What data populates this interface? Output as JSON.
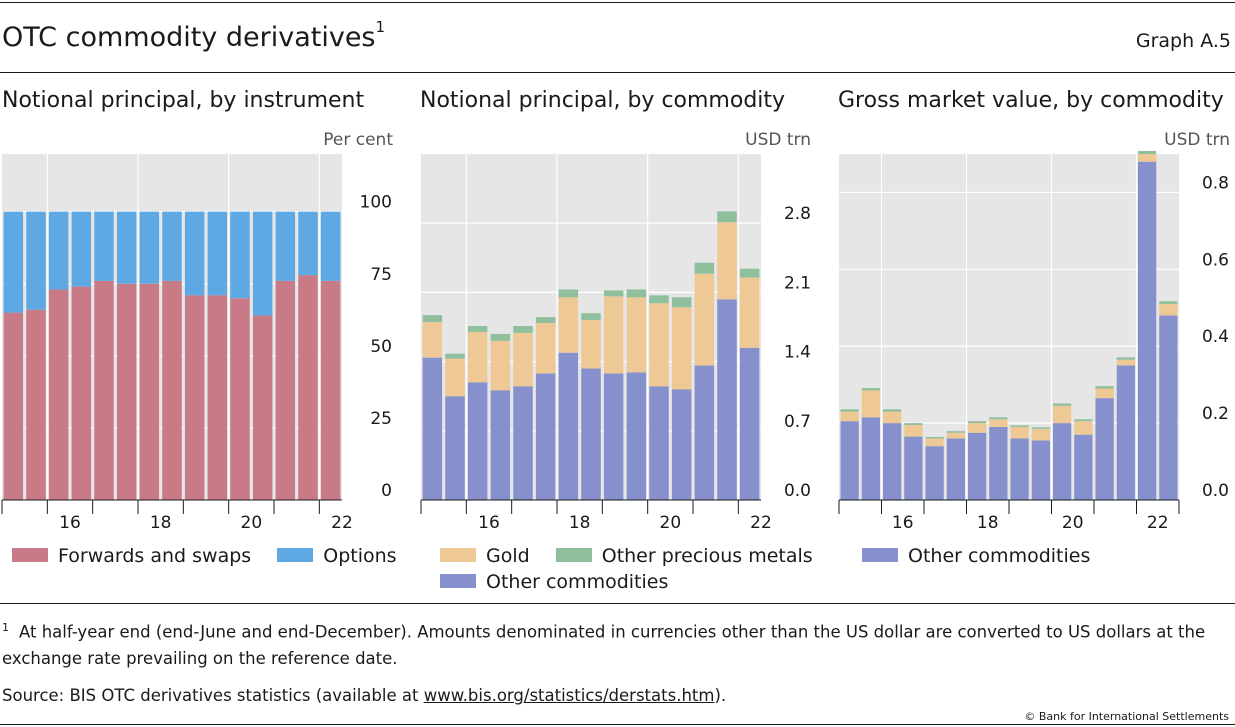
{
  "header": {
    "title": "OTC commodity derivatives",
    "title_sup": "1",
    "graph_number": "Graph A.5"
  },
  "colors": {
    "forwards": "#c97a87",
    "options": "#5ea9e3",
    "gold": "#efc995",
    "other_precious": "#8fbf9d",
    "other_commodities": "#8590cc",
    "plot_bg": "#e6e6e6"
  },
  "chart_data": [
    {
      "type": "bar",
      "stacked": true,
      "title": "Notional principal, by instrument",
      "unit": "Per cent",
      "ylim": [
        0,
        120
      ],
      "yticks": [
        0,
        25,
        50,
        75,
        100
      ],
      "ytick_labels": [
        "0",
        "25",
        "50",
        "75",
        "100"
      ],
      "xtick_labels": [
        "16",
        "18",
        "20",
        "22"
      ],
      "xtick_positions": [
        1.5,
        5.5,
        9.5,
        13.5
      ],
      "grid": true,
      "series": [
        {
          "name": "Forwards and swaps",
          "values": [
            65,
            66,
            73,
            74,
            76,
            75,
            75,
            76,
            71,
            71,
            70,
            64,
            76,
            78,
            76
          ]
        },
        {
          "name": "Options",
          "values": [
            35,
            34,
            27,
            26,
            24,
            25,
            25,
            24,
            29,
            29,
            30,
            36,
            24,
            22,
            24
          ]
        }
      ]
    },
    {
      "type": "bar",
      "stacked": true,
      "title": "Notional principal, by commodity",
      "unit": "USD trn",
      "ylim": [
        0,
        3.5
      ],
      "yticks": [
        0,
        0.7,
        1.4,
        2.1,
        2.8
      ],
      "ytick_labels": [
        "0.0",
        "0.7",
        "1.4",
        "2.1",
        "2.8"
      ],
      "xtick_labels": [
        "16",
        "18",
        "20",
        "22"
      ],
      "xtick_positions": [
        1.5,
        5.5,
        9.5,
        13.5
      ],
      "grid": true,
      "series": [
        {
          "name": "Other commodities",
          "values": [
            1.44,
            1.05,
            1.19,
            1.11,
            1.15,
            1.28,
            1.49,
            1.33,
            1.28,
            1.29,
            1.15,
            1.12,
            1.36,
            2.03,
            1.54
          ]
        },
        {
          "name": "Gold",
          "values": [
            0.36,
            0.38,
            0.51,
            0.5,
            0.54,
            0.51,
            0.56,
            0.49,
            0.78,
            0.76,
            0.84,
            0.83,
            0.93,
            0.78,
            0.71
          ]
        },
        {
          "name": "Other precious metals",
          "values": [
            0.07,
            0.05,
            0.06,
            0.07,
            0.07,
            0.06,
            0.08,
            0.07,
            0.06,
            0.08,
            0.08,
            0.1,
            0.11,
            0.11,
            0.09
          ]
        }
      ]
    },
    {
      "type": "bar",
      "stacked": true,
      "title": "Gross market value, by commodity",
      "unit": "USD trn",
      "ylim": [
        0,
        0.9
      ],
      "yticks": [
        0,
        0.2,
        0.4,
        0.6,
        0.8
      ],
      "ytick_labels": [
        "0.0",
        "0.2",
        "0.4",
        "0.6",
        "0.8"
      ],
      "xtick_labels": [
        "16",
        "18",
        "20",
        "22"
      ],
      "xtick_positions": [
        1.5,
        5.5,
        9.5,
        13.5
      ],
      "grid": true,
      "series": [
        {
          "name": "Other commodities",
          "values": [
            0.205,
            0.215,
            0.2,
            0.165,
            0.14,
            0.16,
            0.175,
            0.19,
            0.16,
            0.155,
            0.2,
            0.17,
            0.265,
            0.35,
            0.88,
            0.48
          ]
        },
        {
          "name": "Gold",
          "values": [
            0.025,
            0.07,
            0.03,
            0.03,
            0.02,
            0.015,
            0.025,
            0.02,
            0.03,
            0.03,
            0.045,
            0.035,
            0.025,
            0.015,
            0.02,
            0.03
          ]
        },
        {
          "name": "Other precious metals",
          "values": [
            0.006,
            0.006,
            0.006,
            0.005,
            0.004,
            0.004,
            0.005,
            0.005,
            0.004,
            0.004,
            0.006,
            0.005,
            0.006,
            0.006,
            0.008,
            0.007
          ]
        }
      ],
      "bar_count": 16
    }
  ],
  "legends": {
    "left": [
      {
        "label": "Forwards and swaps",
        "color": "#c97a87"
      },
      {
        "label": "Options",
        "color": "#5ea9e3"
      }
    ],
    "middle_row1": [
      {
        "label": "Gold",
        "color": "#efc995"
      },
      {
        "label": "Other precious metals",
        "color": "#8fbf9d"
      }
    ],
    "middle_row2": [
      {
        "label": "Other commodities",
        "color": "#8590cc"
      }
    ],
    "right": [
      {
        "label": "Other commodities",
        "color": "#8590cc"
      }
    ]
  },
  "footnote": {
    "marker": "1",
    "text": "At half-year end (end-June and end-December). Amounts denominated in currencies other than the US dollar are converted to US dollars at the exchange rate prevailing on the reference date."
  },
  "source": {
    "prefix": "Source: BIS OTC derivatives statistics (available at ",
    "link": "www.bis.org/statistics/derstats.htm",
    "suffix": ")."
  },
  "copyright": "© Bank for International Settlements"
}
